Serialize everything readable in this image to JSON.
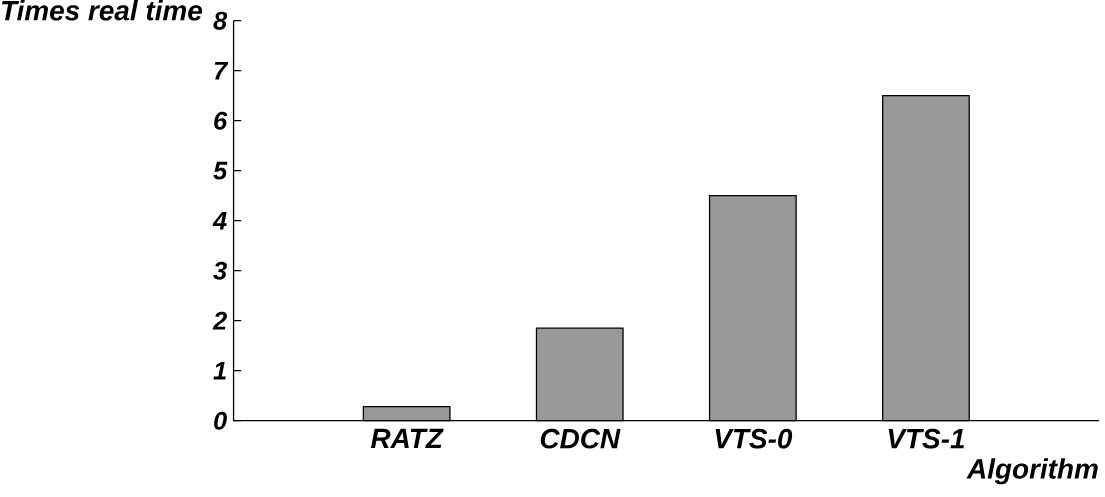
{
  "chart_data": {
    "type": "bar",
    "xlabel": "Algorithm",
    "ylabel": "Times real time",
    "categories": [
      "RATZ",
      "CDCN",
      "VTS-0",
      "VTS-1"
    ],
    "values": [
      0.28,
      1.85,
      4.5,
      6.5
    ],
    "color": "#999999",
    "ylim": [
      0,
      8
    ],
    "yticks": [
      0,
      1,
      2,
      3,
      4,
      5,
      6,
      7,
      8
    ]
  }
}
